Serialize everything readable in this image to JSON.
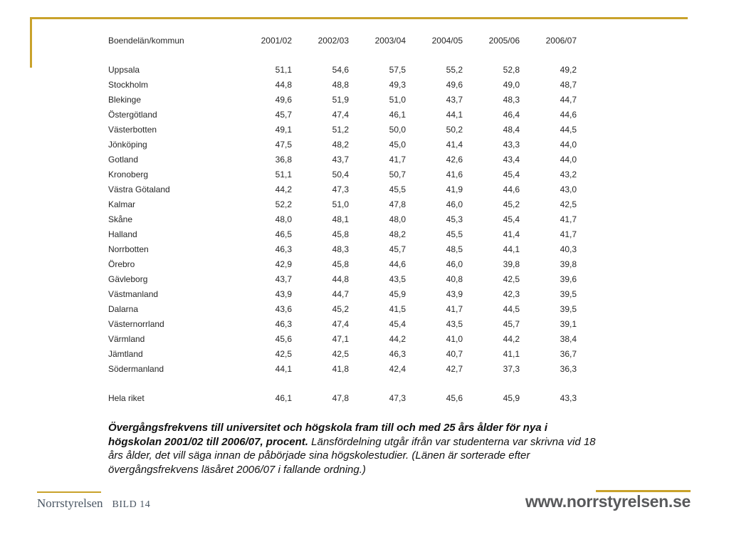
{
  "colors": {
    "accent": "#C9A22B",
    "table_text": "#262626",
    "footer_text": "#4A5663",
    "website_text": "#58595B"
  },
  "table": {
    "header": [
      "Boendelän/kommun",
      "2001/02",
      "2002/03",
      "2003/04",
      "2004/05",
      "2005/06",
      "2006/07"
    ],
    "rows": [
      [
        "Uppsala",
        "51,1",
        "54,6",
        "57,5",
        "55,2",
        "52,8",
        "49,2"
      ],
      [
        "Stockholm",
        "44,8",
        "48,8",
        "49,3",
        "49,6",
        "49,0",
        "48,7"
      ],
      [
        "Blekinge",
        "49,6",
        "51,9",
        "51,0",
        "43,7",
        "48,3",
        "44,7"
      ],
      [
        "Östergötland",
        "45,7",
        "47,4",
        "46,1",
        "44,1",
        "46,4",
        "44,6"
      ],
      [
        "Västerbotten",
        "49,1",
        "51,2",
        "50,0",
        "50,2",
        "48,4",
        "44,5"
      ],
      [
        "Jönköping",
        "47,5",
        "48,2",
        "45,0",
        "41,4",
        "43,3",
        "44,0"
      ],
      [
        "Gotland",
        "36,8",
        "43,7",
        "41,7",
        "42,6",
        "43,4",
        "44,0"
      ],
      [
        "Kronoberg",
        "51,1",
        "50,4",
        "50,7",
        "41,6",
        "45,4",
        "43,2"
      ],
      [
        "Västra Götaland",
        "44,2",
        "47,3",
        "45,5",
        "41,9",
        "44,6",
        "43,0"
      ],
      [
        "Kalmar",
        "52,2",
        "51,0",
        "47,8",
        "46,0",
        "45,2",
        "42,5"
      ],
      [
        "Skåne",
        "48,0",
        "48,1",
        "48,0",
        "45,3",
        "45,4",
        "41,7"
      ],
      [
        "Halland",
        "46,5",
        "45,8",
        "48,2",
        "45,5",
        "41,4",
        "41,7"
      ],
      [
        "Norrbotten",
        "46,3",
        "48,3",
        "45,7",
        "48,5",
        "44,1",
        "40,3"
      ],
      [
        "Örebro",
        "42,9",
        "45,8",
        "44,6",
        "46,0",
        "39,8",
        "39,8"
      ],
      [
        "Gävleborg",
        "43,7",
        "44,8",
        "43,5",
        "40,8",
        "42,5",
        "39,6"
      ],
      [
        "Västmanland",
        "43,9",
        "44,7",
        "45,9",
        "43,9",
        "42,3",
        "39,5"
      ],
      [
        "Dalarna",
        "43,6",
        "45,2",
        "41,5",
        "41,7",
        "44,5",
        "39,5"
      ],
      [
        "Västernorrland",
        "46,3",
        "47,4",
        "45,4",
        "43,5",
        "45,7",
        "39,1"
      ],
      [
        "Värmland",
        "45,6",
        "47,1",
        "44,2",
        "41,0",
        "44,2",
        "38,4"
      ],
      [
        "Jämtland",
        "42,5",
        "42,5",
        "46,3",
        "40,7",
        "41,1",
        "36,7"
      ],
      [
        "Södermanland",
        "44,1",
        "41,8",
        "42,4",
        "42,7",
        "37,3",
        "36,3"
      ]
    ],
    "total_row": [
      "Hela riket",
      "46,1",
      "47,8",
      "47,3",
      "45,6",
      "45,9",
      "43,3"
    ]
  },
  "caption": {
    "bold": "Övergångsfrekvens till universitet och högskola fram till och med 25 års ålder för nya i högskolan 2001/02 till 2006/07, procent.",
    "regular": " Länsfördelning utgår ifrån var studenterna var skrivna vid 18 års ålder, det vill säga innan de påbörjade sina högskolestudier. (Länen är sorterade efter övergångsfrekvens läsåret 2006/07 i fallande ordning.)"
  },
  "footer": {
    "organization": "Norrstyrelsen",
    "slide_label": "BILD 14",
    "website": "www.norrstyrelsen.se"
  }
}
